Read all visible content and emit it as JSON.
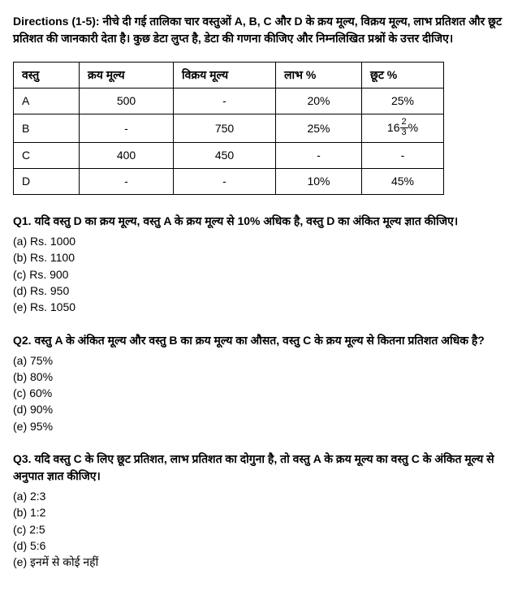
{
  "directions": "Directions (1-5):  नीचे दी गई तालिका चार वस्तुओं A, B, C और D के क्रय मूल्य, विक्रय मूल्य, लाभ प्रतिशत और छूट प्रतिशत की जानकारी देता है। कुछ डेटा लुप्त है, डेटा की गणना कीजिए और निम्नलिखित प्रश्नों के उत्तर दीजिए।",
  "table": {
    "headers": {
      "item": "वस्तु",
      "cp": "क्रय मूल्य",
      "sp": "विक्रय मूल्य",
      "profit": "लाभ %",
      "discount": "छूट %"
    },
    "rows": [
      {
        "item": "A",
        "cp": "500",
        "sp": "-",
        "profit": "20%",
        "discount": "25%"
      },
      {
        "item": "B",
        "cp": "-",
        "sp": "750",
        "profit": "25%",
        "discount_prefix": "16",
        "discount_frac_num": "2",
        "discount_frac_den": "3",
        "discount_suffix": "%"
      },
      {
        "item": "C",
        "cp": "400",
        "sp": "450",
        "profit": "-",
        "discount": "-"
      },
      {
        "item": "D",
        "cp": "-",
        "sp": "-",
        "profit": "10%",
        "discount": "45%"
      }
    ]
  },
  "questions": [
    {
      "text": "Q1. यदि वस्तु D का क्रय मूल्य, वस्तु A के क्रय मूल्य से 10% अधिक है, वस्तु D का अंकित मूल्य ज्ञात कीजिए।",
      "options": [
        "(a) Rs. 1000",
        "(b) Rs. 1100",
        "(c) Rs. 900",
        "(d) Rs. 950",
        "(e) Rs. 1050"
      ]
    },
    {
      "text": "Q2. वस्तु A के अंकित मूल्य और वस्तु B का क्रय मूल्य का औसत, वस्तु C के क्रय मूल्य से कितना प्रतिशत अधिक है?",
      "options": [
        "(a) 75%",
        "(b) 80%",
        "(c) 60%",
        "(d) 90%",
        "(e) 95%"
      ]
    },
    {
      "text": "Q3. यदि वस्तु C के लिए छूट प्रतिशत, लाभ प्रतिशत का दोगुना है, तो वस्तु A के क्रय मूल्य का वस्तु C के अंकित मूल्य से अनुपात ज्ञात कीजिए।",
      "options": [
        "(a) 2:3",
        "(b) 1:2",
        "(c) 2:5",
        "(d) 5:6",
        "(e) इनमें से कोई नहीं"
      ]
    }
  ]
}
